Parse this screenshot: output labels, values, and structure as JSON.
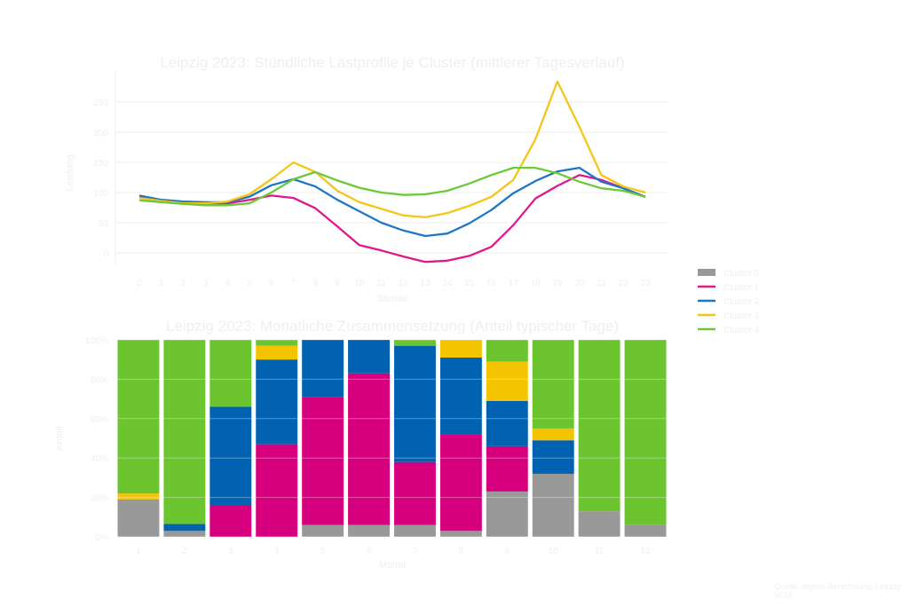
{
  "chart_data": [
    {
      "type": "line",
      "title": "Leipzig 2023: Stündliche Lastprofile je Cluster (mittlerer Tagesverlauf)",
      "xlabel": "Stunde",
      "ylabel": "Leistung",
      "x": [
        0,
        1,
        2,
        3,
        4,
        5,
        6,
        7,
        8,
        9,
        10,
        11,
        12,
        13,
        14,
        15,
        16,
        17,
        18,
        19,
        20,
        21,
        22,
        23
      ],
      "x_tick_labels": [
        "0",
        "1",
        "2",
        "3",
        "4",
        "5",
        "6",
        "7",
        "8",
        "9",
        "10",
        "11",
        "12",
        "13",
        "14",
        "15",
        "16",
        "17",
        "18",
        "19",
        "20",
        "21",
        "22",
        "23"
      ],
      "y_ticks": [
        0,
        50,
        100,
        150,
        200,
        250
      ],
      "y_tick_labels": [
        "0",
        "50",
        "100",
        "150",
        "200",
        "250"
      ],
      "ylim": [
        -20,
        290
      ],
      "grid": true,
      "series": [
        {
          "name": "Cluster 1",
          "color": "#e0188c",
          "values": [
            92,
            86,
            84,
            82,
            82,
            88,
            95,
            91,
            74,
            44,
            13,
            4,
            -6,
            -15,
            -13,
            -5,
            10,
            46,
            90,
            111,
            129,
            121,
            107,
            93
          ]
        },
        {
          "name": "Cluster 2",
          "color": "#1f77c4",
          "values": [
            95,
            88,
            85,
            84,
            84,
            93,
            112,
            122,
            110,
            88,
            69,
            50,
            37,
            28,
            32,
            49,
            71,
            99,
            119,
            135,
            141,
            118,
            107,
            93
          ]
        },
        {
          "name": "Cluster 3",
          "color": "#f5c518",
          "values": [
            91,
            86,
            82,
            82,
            85,
            97,
            122,
            150,
            134,
            103,
            84,
            73,
            62,
            59,
            66,
            78,
            93,
            121,
            188,
            284,
            209,
            129,
            110,
            100
          ]
        },
        {
          "name": "Cluster 4",
          "color": "#6cc93a",
          "values": [
            87,
            84,
            81,
            79,
            79,
            82,
            100,
            122,
            134,
            120,
            108,
            100,
            96,
            97,
            103,
            115,
            129,
            141,
            141,
            132,
            118,
            107,
            103,
            93
          ]
        }
      ]
    },
    {
      "type": "bar",
      "stacked": true,
      "title": "Leipzig 2023: Monatliche Zusammensetzung (Anteil typischer Tage)",
      "xlabel": "Monat",
      "ylabel": "Anteil",
      "categories": [
        "1",
        "2",
        "3",
        "4",
        "5",
        "6",
        "7",
        "8",
        "9",
        "10",
        "11",
        "12"
      ],
      "y_ticks": [
        0,
        0.2,
        0.4,
        0.6,
        0.8,
        1.0
      ],
      "y_tick_labels": [
        "0%",
        "20%",
        "40%",
        "60%",
        "80%",
        "100%"
      ],
      "ylim": [
        0,
        1
      ],
      "grid": true,
      "series": [
        {
          "name": "Cluster 0",
          "color": "#999999",
          "values": [
            0.19,
            0.03,
            0,
            0,
            0.06,
            0.06,
            0.06,
            0.03,
            0.23,
            0.32,
            0.13,
            0.06
          ]
        },
        {
          "name": "Cluster 1",
          "color": "#d6007e",
          "values": [
            0,
            0,
            0.16,
            0.47,
            0.65,
            0.77,
            0.32,
            0.49,
            0.23,
            0,
            0,
            0
          ]
        },
        {
          "name": "Cluster 2",
          "color": "#0062b0",
          "values": [
            0,
            0.035,
            0.5,
            0.43,
            0.29,
            0.17,
            0.59,
            0.39,
            0.23,
            0.17,
            0,
            0
          ]
        },
        {
          "name": "Cluster 3",
          "color": "#f5c400",
          "values": [
            0.03,
            0,
            0,
            0.07,
            0,
            0,
            0,
            0.09,
            0.2,
            0.06,
            0,
            0
          ]
        },
        {
          "name": "Cluster 4",
          "color": "#6cc42f",
          "values": [
            0.78,
            0.935,
            0.34,
            0.03,
            0,
            0,
            0.03,
            0,
            0.11,
            0.45,
            0.87,
            0.94
          ]
        }
      ]
    }
  ],
  "legend": {
    "placement": "right",
    "entries": [
      {
        "name": "Cluster 0",
        "color": "#999999",
        "kind": "box"
      },
      {
        "name": "Cluster 1",
        "color": "#e0188c",
        "kind": "line"
      },
      {
        "name": "Cluster 2",
        "color": "#1f77c4",
        "kind": "line"
      },
      {
        "name": "Cluster 3",
        "color": "#f5c518",
        "kind": "line"
      },
      {
        "name": "Cluster 4",
        "color": "#6cc93a",
        "kind": "line"
      }
    ]
  },
  "footer": "Quelle: eigene Berechnung, Leipzig 2023"
}
